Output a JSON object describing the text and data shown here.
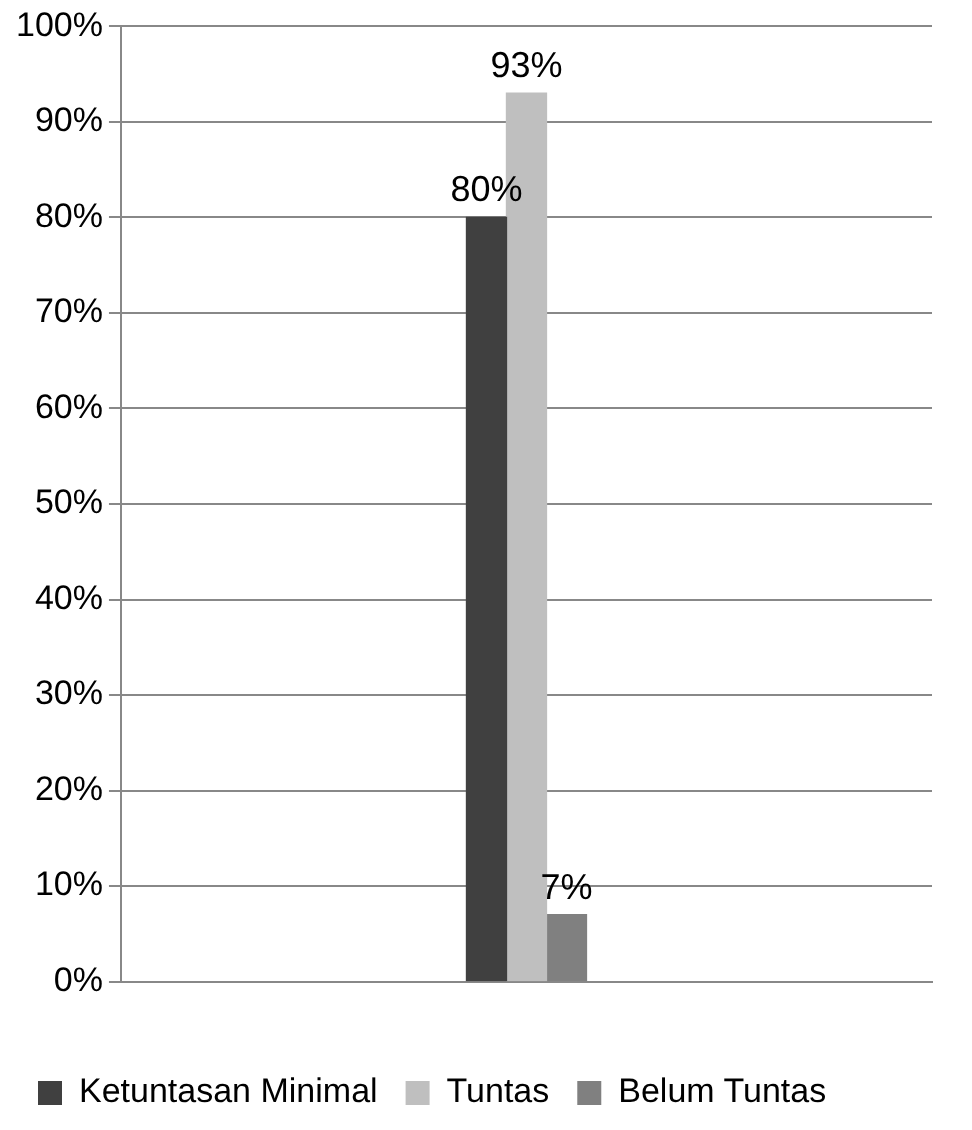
{
  "chart_data": {
    "type": "bar",
    "categories": [
      null
    ],
    "series": [
      {
        "name": "Ketuntasan Minimal",
        "color": "#404040",
        "values": [
          80
        ],
        "value_labels": [
          "80%"
        ]
      },
      {
        "name": "Tuntas",
        "color": "#bfbfbf",
        "values": [
          93
        ],
        "value_labels": [
          "93%"
        ]
      },
      {
        "name": "Belum Tuntas",
        "color": "#808080",
        "values": [
          7
        ],
        "value_labels": [
          "7%"
        ]
      }
    ],
    "ylim": [
      0,
      100
    ],
    "yticks": [
      {
        "value": 0,
        "label": "0%"
      },
      {
        "value": 10,
        "label": "10%"
      },
      {
        "value": 20,
        "label": "20%"
      },
      {
        "value": 30,
        "label": "30%"
      },
      {
        "value": 40,
        "label": "40%"
      },
      {
        "value": 50,
        "label": "50%"
      },
      {
        "value": 60,
        "label": "60%"
      },
      {
        "value": 70,
        "label": "70%"
      },
      {
        "value": 80,
        "label": "80%"
      },
      {
        "value": 90,
        "label": "90%"
      },
      {
        "value": 100,
        "label": "100%"
      }
    ],
    "grid": "y",
    "legend": "bottom"
  }
}
